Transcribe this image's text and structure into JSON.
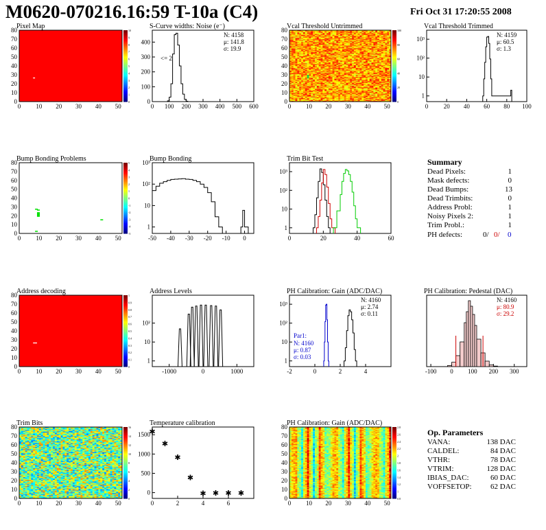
{
  "header": {
    "title": "M0620-070216.16:59 T-10a (C4)",
    "date": "Fri Oct 31 17:20:55 2008"
  },
  "colors": {
    "map_red": "#ff0000",
    "hist_line": "#000000",
    "trim_red": "#cc0000",
    "trim_green": "#00cc00",
    "par1_blue": "#0000cc",
    "ped_red": "#cc0000"
  },
  "summary": {
    "title": "Summary",
    "rows": [
      {
        "label": "Dead Pixels:",
        "value": "1"
      },
      {
        "label": "Mask defects:",
        "value": "0"
      },
      {
        "label": "Dead Bumps:",
        "value": "13"
      },
      {
        "label": "Dead Trimbits:",
        "value": "0"
      },
      {
        "label": "Address Probl:",
        "value": "1"
      },
      {
        "label": "Noisy Pixels 2:",
        "value": "1"
      },
      {
        "label": "Trim Probl.:",
        "value": "1"
      }
    ],
    "ph_label": "PH defects:",
    "ph_values": [
      "0/",
      "0/",
      "0"
    ]
  },
  "op_params": {
    "title": "Op. Parameters",
    "rows": [
      {
        "label": "VANA:",
        "value": "138 DAC"
      },
      {
        "label": "CALDEL:",
        "value": "84 DAC"
      },
      {
        "label": "VTHR:",
        "value": "78 DAC"
      },
      {
        "label": "VTRIM:",
        "value": "128 DAC"
      },
      {
        "label": "IBIAS_DAC:",
        "value": "60 DAC"
      },
      {
        "label": "VOFFSETOP:",
        "value": "62 DAC"
      }
    ]
  },
  "chart_data": [
    {
      "type": "heatmap",
      "title": "Pixel Map",
      "xlim": [
        0,
        52
      ],
      "ylim": [
        0,
        80
      ],
      "xticks": [
        "0",
        "10",
        "20",
        "30",
        "40",
        "50"
      ],
      "yticks": [
        "0",
        "10",
        "20",
        "30",
        "40",
        "50",
        "60",
        "70",
        "80"
      ],
      "fill": "uniform red",
      "zlim": [
        0,
        10
      ],
      "zticks": [
        "0",
        "1",
        "2",
        "3",
        "4",
        "5",
        "6",
        "7",
        "8",
        "9",
        "10"
      ]
    },
    {
      "type": "histogram",
      "title": "S-Curve widths: Noise (e⁻)",
      "xlim": [
        0,
        600
      ],
      "ylim": [
        0,
        480
      ],
      "xticks": [
        "0",
        "100",
        "200",
        "300",
        "400",
        "500",
        "600"
      ],
      "yticks": [
        "0",
        "100",
        "200",
        "300",
        "400"
      ],
      "stats": [
        "N: 4158",
        "μ: 141.8",
        "σ: 19.9"
      ],
      "annotation": "<= 2",
      "x": [
        80,
        90,
        100,
        110,
        120,
        130,
        140,
        150,
        160,
        170,
        180,
        190,
        200,
        210
      ],
      "values": [
        0,
        5,
        30,
        120,
        320,
        450,
        460,
        380,
        240,
        120,
        50,
        15,
        3,
        0
      ]
    },
    {
      "type": "heatmap",
      "title": "Vcal Threshold Untrimmed",
      "xlim": [
        0,
        52
      ],
      "ylim": [
        0,
        80
      ],
      "xticks": [
        "0",
        "10",
        "20",
        "30",
        "40",
        "50"
      ],
      "yticks": [
        "0",
        "10",
        "20",
        "30",
        "40",
        "50",
        "60",
        "70",
        "80"
      ],
      "zticks": [
        "0",
        "20",
        "40",
        "60",
        "80",
        "100"
      ]
    },
    {
      "type": "histogram",
      "title": "Vcal Threshold Trimmed",
      "log": true,
      "xlim": [
        0,
        100
      ],
      "ylim": [
        0.5,
        3000
      ],
      "xticks": [
        "0",
        "20",
        "40",
        "60",
        "80",
        "100"
      ],
      "yticks": [
        "1",
        "10",
        "10²",
        "10³"
      ],
      "stats": [
        "N: 4159",
        "μ: 60.5",
        "σ: 1.3"
      ],
      "x": [
        56,
        57,
        58,
        59,
        60,
        61,
        62,
        63,
        64,
        65,
        84,
        85
      ],
      "values": [
        1,
        8,
        60,
        400,
        1300,
        1400,
        600,
        90,
        8,
        1,
        2,
        0
      ]
    },
    {
      "type": "heatmap",
      "title": "Bump Bonding Problems",
      "xlim": [
        0,
        52
      ],
      "ylim": [
        0,
        80
      ],
      "xticks": [
        "0",
        "10",
        "20",
        "30",
        "40",
        "50"
      ],
      "yticks": [
        "0",
        "10",
        "20",
        "30",
        "40",
        "50",
        "60",
        "70",
        "80"
      ],
      "zticks": [
        "-5",
        "-4",
        "-3",
        "-2",
        "-1",
        "0",
        "1",
        "2",
        "3",
        "4",
        "5"
      ]
    },
    {
      "type": "histogram",
      "title": "Bump Bonding",
      "log": true,
      "xlim": [
        -50,
        5
      ],
      "ylim": [
        0.5,
        1000
      ],
      "xticks": [
        "-50",
        "-40",
        "-30",
        "-20",
        "-10",
        "0"
      ],
      "yticks": [
        "1",
        "10",
        "10²",
        "10³"
      ],
      "x": [
        -50,
        -48,
        -46,
        -44,
        -42,
        -40,
        -38,
        -36,
        -34,
        -32,
        -30,
        -28,
        -26,
        -24,
        -22,
        -20,
        -18,
        -16,
        -14,
        -12,
        -2,
        -1,
        0
      ],
      "values": [
        50,
        80,
        110,
        130,
        150,
        165,
        170,
        175,
        180,
        170,
        165,
        150,
        130,
        100,
        70,
        40,
        15,
        3,
        1,
        0,
        1,
        6,
        1
      ]
    },
    {
      "type": "histogram",
      "title": "Trim Bit Test",
      "log": true,
      "xlim": [
        0,
        60
      ],
      "ylim": [
        0.5,
        3000
      ],
      "xticks": [
        "0",
        "20",
        "40",
        "60"
      ],
      "yticks": [
        "1",
        "10",
        "10²",
        "10³"
      ],
      "series": [
        {
          "color": "#000000",
          "x": [
            14,
            15,
            16,
            17,
            18,
            19,
            20,
            21,
            22,
            23
          ],
          "values": [
            1,
            5,
            40,
            300,
            1400,
            900,
            200,
            30,
            4,
            1
          ]
        },
        {
          "color": "#cc0000",
          "x": [
            16,
            17,
            18,
            19,
            20,
            21,
            22,
            23,
            24,
            25,
            26
          ],
          "values": [
            1,
            4,
            30,
            250,
            1300,
            700,
            150,
            20,
            3,
            1,
            1
          ]
        },
        {
          "color": "#00cc00",
          "x": [
            26,
            28,
            30,
            31,
            32,
            33,
            34,
            35,
            36,
            37,
            38,
            39,
            40
          ],
          "values": [
            1,
            8,
            60,
            300,
            800,
            1300,
            1100,
            700,
            300,
            80,
            15,
            3,
            1
          ]
        }
      ]
    },
    {
      "type": "heatmap",
      "title": "Address decoding",
      "xlim": [
        0,
        52
      ],
      "ylim": [
        0,
        80
      ],
      "xticks": [
        "0",
        "10",
        "20",
        "30",
        "40",
        "50"
      ],
      "yticks": [
        "0",
        "10",
        "20",
        "30",
        "40",
        "50",
        "60",
        "70",
        "80"
      ],
      "fill": "uniform red",
      "zlim": [
        0,
        1
      ],
      "zticks": [
        "0",
        "0.1",
        "0.2",
        "0.3",
        "0.4",
        "0.5",
        "0.6",
        "0.7",
        "0.8",
        "0.9",
        "1"
      ]
    },
    {
      "type": "histogram",
      "title": "Address Levels",
      "log": true,
      "xlim": [
        -1500,
        1500
      ],
      "ylim": [
        0.5,
        3000
      ],
      "xticks": [
        "-1000",
        "0",
        "1000"
      ],
      "yticks": [
        "1",
        "10",
        "10²"
      ],
      "x": [
        -680,
        -420,
        -320,
        -200,
        -60,
        80,
        240,
        380,
        520
      ],
      "values": [
        50,
        300,
        700,
        800,
        900,
        900,
        850,
        800,
        500
      ]
    },
    {
      "type": "histogram",
      "title": "PH Calibration: Gain (ADC/DAC)",
      "log": true,
      "xlim": [
        -2,
        6
      ],
      "ylim": [
        0.5,
        3000
      ],
      "xticks": [
        "-2",
        "0",
        "2",
        "4"
      ],
      "yticks": [
        "1",
        "10",
        "10²",
        "10³"
      ],
      "stats": [
        "N: 4160",
        "μ: 2.74",
        "σ: 0.11"
      ],
      "par1": {
        "title": "Par1:",
        "stats": [
          "N: 4160",
          "μ: 0.87",
          "σ: 0.03"
        ]
      },
      "series": [
        {
          "color": "#000000",
          "x": [
            2.3,
            2.4,
            2.5,
            2.6,
            2.7,
            2.8,
            2.9,
            3.0,
            3.1,
            3.2
          ],
          "values": [
            1,
            5,
            40,
            250,
            500,
            400,
            150,
            30,
            4,
            1
          ]
        },
        {
          "color": "#0000cc",
          "x": [
            0.7,
            0.75,
            0.8,
            0.85,
            0.9,
            0.95,
            1.0,
            1.05
          ],
          "values": [
            1,
            10,
            120,
            900,
            1000,
            150,
            10,
            1
          ]
        }
      ]
    },
    {
      "type": "histogram",
      "title": "PH Calibration: Pedestal (DAC)",
      "xlim": [
        -120,
        360
      ],
      "ylim": [
        0,
        130
      ],
      "xticks": [
        "-100",
        "0",
        "100",
        "200",
        "300"
      ],
      "stats": [
        "N: 4160",
        "μ: 80.9",
        "σ: 29.2"
      ],
      "x": [
        -20,
        0,
        20,
        40,
        60,
        70,
        80,
        90,
        100,
        110,
        120,
        140,
        160,
        180,
        200
      ],
      "values": [
        2,
        8,
        20,
        45,
        80,
        100,
        120,
        110,
        95,
        75,
        50,
        25,
        10,
        3,
        1
      ]
    },
    {
      "type": "heatmap",
      "title": "Trim Bits",
      "xlim": [
        0,
        52
      ],
      "ylim": [
        0,
        80
      ],
      "xticks": [
        "0",
        "10",
        "20",
        "30",
        "40",
        "50"
      ],
      "yticks": [
        "0",
        "10",
        "20",
        "30",
        "40",
        "50",
        "60",
        "70",
        "80"
      ],
      "zticks": [
        "0",
        "2",
        "4",
        "6",
        "8",
        "10",
        "12",
        "14",
        "16"
      ]
    },
    {
      "type": "scatter",
      "title": "Temperature calibration",
      "xlim": [
        0,
        8
      ],
      "ylim": [
        -150,
        1700
      ],
      "xticks": [
        "0",
        "2",
        "4",
        "6"
      ],
      "yticks": [
        "0",
        "500",
        "1000",
        "1500"
      ],
      "x": [
        0,
        1,
        2,
        3,
        4,
        5,
        6,
        7
      ],
      "y": [
        1580,
        1270,
        920,
        390,
        -20,
        -10,
        -10,
        -10
      ]
    },
    {
      "type": "heatmap",
      "title": "PH Calibration: Gain (ADC/DAC)",
      "xlim": [
        0,
        52
      ],
      "ylim": [
        0,
        80
      ],
      "xticks": [
        "0",
        "10",
        "20",
        "30",
        "40",
        "50"
      ],
      "yticks": [
        "0",
        "10",
        "20",
        "30",
        "40",
        "50",
        "60",
        "70",
        "80"
      ],
      "zticks": [
        "0.8",
        "1",
        "1.2",
        "1.4",
        "1.6",
        "1.8",
        "2",
        "2.2",
        "2.4",
        "2.6",
        "2.8"
      ]
    }
  ]
}
